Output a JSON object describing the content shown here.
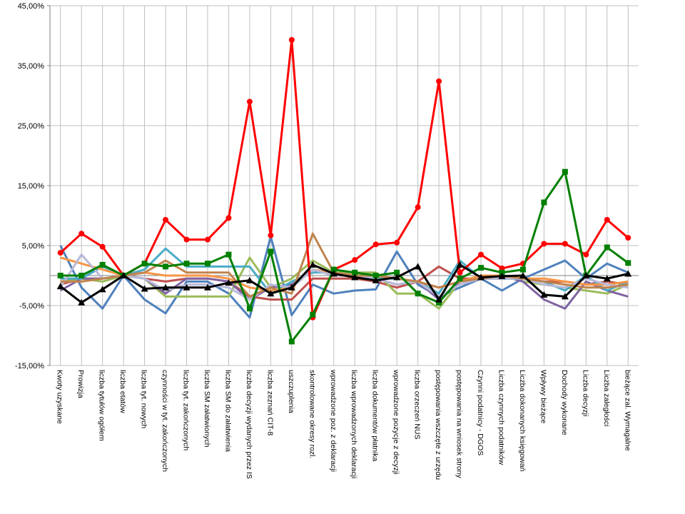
{
  "chart_data": {
    "type": "line",
    "title": "",
    "xlabel": "",
    "ylabel": "",
    "ylim": [
      -15,
      45
    ],
    "yticks": [
      "45,00%",
      "35,00%",
      "25,00%",
      "15,00%",
      "5,00%",
      "-5,00%",
      "-15,00%"
    ],
    "ytick_values": [
      45,
      35,
      25,
      15,
      5,
      -5,
      -15
    ],
    "grid": "vertical lines at categories; horizontal lines at y-ticks",
    "legend": "none",
    "categories": [
      "Kwoty uzyskane",
      "Prowizja",
      "liczba tytułów ogółem",
      "liczba etatów",
      "liczba tyt. nowych",
      "czynności w tyt. zakończonych",
      "liczba tyt. zakończonych",
      "liczba SM załatwionych",
      "liczba SM do załatwienia",
      "liczba decyzji wydanych przez IS",
      "liczba zeznań CIT-8",
      "uszczuplenia",
      "skontrolowane okresy rozl.",
      "wprowadzone poz. z deklaracji",
      "liczba wprowadzonych deklaracji",
      "liczba dokumentów płatnika",
      "wprowadzone pozycje z decyzji",
      "liczba orzeczeń NUS",
      "postępowania wszczęte z urzędu",
      "postępowania na wniosek strony",
      "Czynni podatnicy - DGOS",
      "Liczba czynnych podatników",
      "Liczba dokonanych księgowań",
      "Wpływy bieżące",
      "Dochody wykonane",
      "Liczba decyzji",
      "Liczba zaległości",
      "bieżące zal. Wymagalne"
    ],
    "series": [
      {
        "color": "#4f81bd",
        "marker": "none",
        "values": [
          5.0,
          -2.0,
          -5.5,
          0,
          -4.0,
          -6.3,
          -1.0,
          -1.0,
          -3.0,
          -7.0,
          6.5,
          -6.6,
          -1.5,
          -3.0,
          -2.5,
          -2.3,
          4.0,
          -1.5,
          -3.5,
          -2.0,
          -0.5,
          -2.5,
          -0.5,
          1.0,
          2.5,
          -0.5,
          2.0,
          0.5
        ]
      },
      {
        "color": "#c0504d",
        "marker": "none",
        "values": [
          -1.5,
          -0.5,
          -0.5,
          0,
          -0.5,
          -1.0,
          -0.5,
          -0.5,
          -1.0,
          -3.5,
          -4.0,
          -4.0,
          -0.5,
          -0.5,
          -0.5,
          -1.0,
          -2.0,
          -1.0,
          1.5,
          -0.5,
          -0.5,
          -0.5,
          -0.5,
          -1.0,
          -1.0,
          -1.5,
          -1.0,
          -1.5
        ]
      },
      {
        "color": "#9bbb59",
        "marker": "none",
        "values": [
          -1.0,
          -0.5,
          -1.0,
          0,
          -0.5,
          -3.5,
          -3.5,
          -3.5,
          -3.5,
          3.0,
          -2.0,
          -0.5,
          2.5,
          0.5,
          0.5,
          0.5,
          -3.0,
          -3.0,
          -5.5,
          -1.0,
          0,
          0,
          -1.0,
          -1.5,
          -2.0,
          -2.5,
          -3.0,
          -1.5
        ]
      },
      {
        "color": "#8064a2",
        "marker": "none",
        "values": [
          -2.5,
          -0.5,
          -0.5,
          0,
          -0.5,
          -3.0,
          -0.5,
          -0.5,
          -1.0,
          -4.0,
          -2.0,
          -1.5,
          1.0,
          0,
          0,
          -0.5,
          -1.5,
          -1.0,
          -4.0,
          -1.0,
          -0.5,
          0,
          -1.0,
          -4.0,
          -5.5,
          -1.0,
          -2.5,
          -3.5
        ]
      },
      {
        "color": "#4bacc6",
        "marker": "none",
        "values": [
          -0.5,
          -0.5,
          1.5,
          0,
          1.0,
          4.5,
          1.5,
          1.5,
          1.5,
          1.5,
          -3.0,
          -1.0,
          0.5,
          0.5,
          0,
          -0.5,
          -0.5,
          -1.0,
          -3.0,
          2.5,
          -0.5,
          -0.5,
          -0.5,
          -1.0,
          -2.5,
          0,
          -2.5,
          -1.0
        ]
      },
      {
        "color": "#f79646",
        "marker": "none",
        "values": [
          3.0,
          2.0,
          1.0,
          0,
          0.5,
          0,
          0,
          0,
          -0.5,
          -2.0,
          -2.5,
          -2.0,
          1.0,
          0.5,
          0,
          0,
          -0.5,
          -1.0,
          -2.0,
          -1.0,
          0,
          0,
          -0.5,
          -0.5,
          -1.0,
          -1.5,
          -1.5,
          -1.0
        ]
      },
      {
        "color": "#b9b9d9",
        "marker": "none",
        "values": [
          -2.0,
          3.5,
          -0.5,
          0,
          -0.5,
          -2.5,
          -1.5,
          -1.5,
          -2.0,
          -4.0,
          -1.5,
          -2.0,
          1.0,
          0,
          0,
          -0.5,
          -1.5,
          -1.0,
          -3.5,
          -1.5,
          -0.5,
          -0.5,
          -0.5,
          -1.5,
          -2.0,
          -0.5,
          -1.5,
          -2.0
        ]
      },
      {
        "color": "#c0834d",
        "marker": "none",
        "values": [
          -1.0,
          -1.0,
          -0.5,
          0,
          0.5,
          2.5,
          0.5,
          0.5,
          0.5,
          -3.5,
          -2.0,
          -3.0,
          7.0,
          0.5,
          0,
          0,
          -0.5,
          -1.0,
          -2.0,
          -1.0,
          -0.5,
          0,
          -0.5,
          -1.0,
          -1.5,
          -2.0,
          -2.0,
          -1.5
        ]
      },
      {
        "color": "#ff0000",
        "marker": "circle",
        "values": [
          3.8,
          7.0,
          4.8,
          0,
          2.0,
          9.3,
          6.0,
          6.0,
          9.6,
          29.0,
          6.7,
          39.3,
          -7.0,
          1.0,
          2.6,
          5.2,
          5.5,
          11.4,
          32.4,
          0.5,
          3.5,
          1.2,
          2.0,
          5.3,
          5.3,
          3.5,
          9.3,
          6.3
        ]
      },
      {
        "color": "#008000",
        "marker": "square",
        "values": [
          0,
          0,
          1.8,
          0,
          2.0,
          1.5,
          2.0,
          2.0,
          3.5,
          -5.5,
          4.0,
          -11.0,
          -6.5,
          1.0,
          0.5,
          0,
          0.5,
          -3.0,
          -4.5,
          -0.5,
          1.3,
          0.5,
          1.0,
          12.2,
          17.3,
          0,
          4.7,
          2.1
        ]
      },
      {
        "color": "#000000",
        "marker": "triangle",
        "values": [
          -1.8,
          -4.5,
          -2.3,
          0,
          -2.2,
          -2.0,
          -2.0,
          -2.0,
          -1.2,
          -0.8,
          -3.0,
          -2.0,
          1.8,
          0.3,
          -0.3,
          -0.8,
          -0.3,
          1.5,
          -4.0,
          1.8,
          -0.3,
          -0.1,
          0,
          -3.2,
          -3.5,
          0,
          -0.5,
          0.3
        ]
      }
    ]
  }
}
